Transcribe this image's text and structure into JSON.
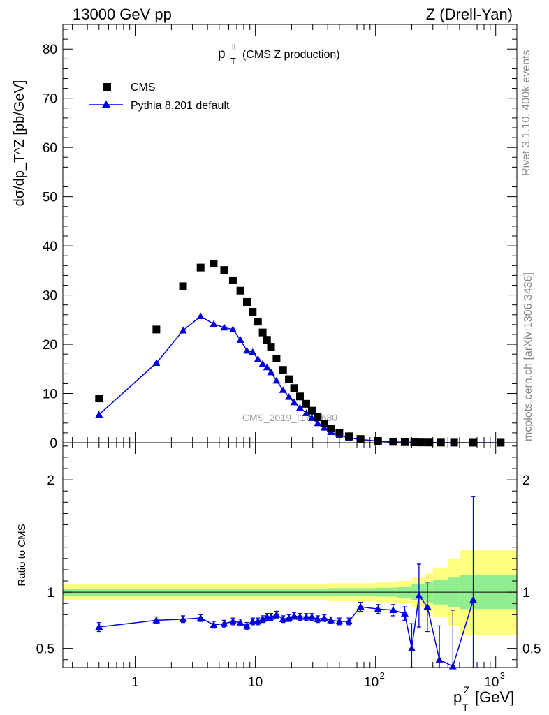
{
  "header": {
    "left": "13000 GeV pp",
    "right": "Z (Drell-Yan)"
  },
  "side_labels": {
    "rivet": "Rivet 3.1.10,  400k events",
    "mcplots": "mcplots.cern.ch [arXiv:1306.3436]"
  },
  "colors": {
    "mc": "#0000dd",
    "data": "#000000",
    "band_inner": "#90ee90",
    "band_outer": "#ffff80",
    "watermark": "#a0a0a0"
  },
  "chart_data": [
    {
      "type": "scatter",
      "title": "p_T^ll (CMS Z production)",
      "title_main": "p",
      "title_sup": "ll",
      "title_sub": "T",
      "title_rest": "(CMS Z production)",
      "ylabel": "dσ/dp_T^Z [pb/GeV]",
      "xscale": "log",
      "xlim": [
        0.25,
        1500
      ],
      "ylim": [
        0,
        85
      ],
      "yticks": [
        0,
        10,
        20,
        30,
        40,
        50,
        60,
        70,
        80
      ],
      "watermark": "CMS_2019_I1753680",
      "legend": {
        "placement": "top-left",
        "data_label": "CMS",
        "mc_label": "Pythia 8.201 default"
      },
      "x": [
        0.5,
        1.5,
        2.5,
        3.5,
        4.5,
        5.5,
        6.5,
        7.5,
        8.5,
        9.5,
        10.5,
        11.5,
        12.5,
        13.5,
        15,
        17,
        19,
        21,
        23.5,
        26.5,
        29.5,
        33,
        37.5,
        42.5,
        50,
        60,
        75,
        105,
        140,
        175,
        210,
        240,
        280,
        350,
        450,
        650,
        1100
      ],
      "series": [
        {
          "name": "CMS",
          "marker": "square",
          "values": [
            9.0,
            23.0,
            31.8,
            35.6,
            36.4,
            35.1,
            33.0,
            30.9,
            28.6,
            26.6,
            24.6,
            22.4,
            20.9,
            19.5,
            17.1,
            14.8,
            12.9,
            11.1,
            9.4,
            7.9,
            6.5,
            5.2,
            3.9,
            2.9,
            2.0,
            1.3,
            0.75,
            0.35,
            0.17,
            0.1,
            0.07,
            0.05,
            0.04,
            0.025,
            0.015,
            0.008,
            0.003
          ]
        },
        {
          "name": "Pythia 8.201 default",
          "marker": "triangle",
          "values": [
            5.7,
            16.2,
            22.8,
            25.7,
            24.1,
            23.4,
            23.0,
            20.9,
            18.7,
            18.4,
            17.0,
            16.0,
            15.3,
            14.3,
            12.6,
            10.7,
            9.3,
            8.2,
            7.1,
            6.0,
            5.0,
            3.95,
            3.05,
            2.15,
            1.5,
            0.98,
            0.65,
            0.3,
            0.14,
            0.08,
            0.04,
            0.045,
            0.032,
            0.011,
            0.006,
            0.007,
            0.0
          ]
        }
      ]
    },
    {
      "type": "line",
      "ylabel": "Ratio to CMS",
      "xlabel": "p_T^Z [GeV]",
      "xlabel_main": "p",
      "xlabel_sup": "Z",
      "xlabel_sub": "T",
      "xlabel_rest": "[GeV]",
      "xscale": "log",
      "xlim": [
        0.25,
        1500
      ],
      "ylim": [
        0.33,
        2.33
      ],
      "yticks": [
        0.5,
        1,
        2
      ],
      "ytick_labels": [
        "0.5",
        "1",
        "2"
      ],
      "xticks": [
        1,
        10,
        100,
        1000
      ],
      "xtick_labels": [
        "1",
        "10",
        "10^2",
        "10^3"
      ],
      "reference": 1,
      "uncertainty_band": {
        "x_edges": [
          0.25,
          40,
          100,
          150,
          200,
          260,
          300,
          400,
          500,
          1500
        ],
        "inner": [
          0.03,
          0.035,
          0.04,
          0.05,
          0.07,
          0.09,
          0.11,
          0.13,
          0.15
        ],
        "outer": [
          0.07,
          0.08,
          0.09,
          0.1,
          0.13,
          0.17,
          0.22,
          0.3,
          0.38
        ]
      },
      "x": [
        0.5,
        1.5,
        2.5,
        3.5,
        4.5,
        5.5,
        6.5,
        7.5,
        8.5,
        9.5,
        10.5,
        11.5,
        12.5,
        13.5,
        15,
        17,
        19,
        21,
        23.5,
        26.5,
        29.5,
        33,
        37.5,
        42.5,
        50,
        60,
        75,
        105,
        140,
        175,
        200,
        230,
        270,
        340,
        440,
        650
      ],
      "series": [
        {
          "name": "Pythia 8.201 default",
          "values": [
            0.69,
            0.75,
            0.76,
            0.77,
            0.71,
            0.72,
            0.74,
            0.73,
            0.7,
            0.74,
            0.74,
            0.76,
            0.78,
            0.78,
            0.8,
            0.76,
            0.77,
            0.79,
            0.78,
            0.78,
            0.78,
            0.76,
            0.77,
            0.75,
            0.74,
            0.74,
            0.87,
            0.85,
            0.84,
            0.81,
            0.5,
            0.97,
            0.87,
            0.4,
            0.34,
            0.93
          ],
          "errors": [
            0.04,
            0.03,
            0.03,
            0.03,
            0.03,
            0.03,
            0.03,
            0.03,
            0.03,
            0.03,
            0.03,
            0.03,
            0.03,
            0.03,
            0.03,
            0.03,
            0.03,
            0.03,
            0.03,
            0.03,
            0.03,
            0.03,
            0.03,
            0.03,
            0.03,
            0.03,
            0.04,
            0.04,
            0.05,
            0.06,
            0.22,
            0.28,
            0.22,
            0.3,
            0.5,
            0.92
          ]
        }
      ]
    }
  ]
}
